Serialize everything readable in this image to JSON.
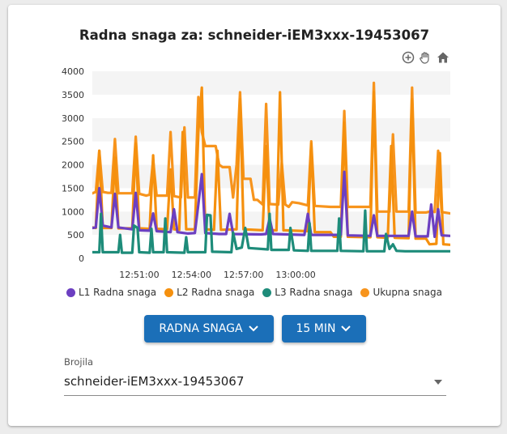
{
  "chart": {
    "title": "Radna snaga za: schneider-iEM3xxx-19453067",
    "toolbar": [
      {
        "name": "zoom-in-icon"
      },
      {
        "name": "pan-hand-icon"
      },
      {
        "name": "home-reset-icon"
      }
    ]
  },
  "chart_data": {
    "type": "line",
    "title": "Radna snaga za: schneider-iEM3xxx-19453067",
    "xlabel": "",
    "ylabel": "",
    "ylim": [
      0,
      4000
    ],
    "yticks": [
      0,
      500,
      1000,
      1500,
      2000,
      2500,
      3000,
      3500,
      4000
    ],
    "xticks": [
      "12:51:00",
      "12:54:00",
      "12:57:00",
      "13:00:00"
    ],
    "x_range_min": [
      -2.7,
      17.9
    ],
    "grid": "horizontal bands",
    "legend": "bottom",
    "series": [
      {
        "name": "L1 Radna snaga",
        "color": "#6c3fc1",
        "points": [
          [
            -2.7,
            650
          ],
          [
            -2.5,
            660
          ],
          [
            -2.3,
            1500
          ],
          [
            -2.1,
            700
          ],
          [
            -1.6,
            660
          ],
          [
            -1.4,
            1380
          ],
          [
            -1.2,
            660
          ],
          [
            -0.4,
            620
          ],
          [
            -0.2,
            1400
          ],
          [
            0,
            600
          ],
          [
            0.6,
            590
          ],
          [
            0.8,
            960
          ],
          [
            1,
            580
          ],
          [
            1.8,
            560
          ],
          [
            2,
            1050
          ],
          [
            2.2,
            560
          ],
          [
            2.8,
            530
          ],
          [
            3.2,
            540
          ],
          [
            3.4,
            1150
          ],
          [
            3.6,
            1800
          ],
          [
            3.8,
            540
          ],
          [
            4.6,
            520
          ],
          [
            5,
            520
          ],
          [
            5.2,
            950
          ],
          [
            5.4,
            520
          ],
          [
            7,
            510
          ],
          [
            7.3,
            520
          ],
          [
            7.5,
            850
          ],
          [
            7.7,
            520
          ],
          [
            9.5,
            500
          ],
          [
            9.7,
            950
          ],
          [
            9.9,
            500
          ],
          [
            11.6,
            500
          ],
          [
            11.8,
            1850
          ],
          [
            12,
            490
          ],
          [
            13.3,
            480
          ],
          [
            13.5,
            920
          ],
          [
            13.7,
            480
          ],
          [
            15.5,
            480
          ],
          [
            15.7,
            1000
          ],
          [
            15.9,
            470
          ],
          [
            16.6,
            470
          ],
          [
            16.8,
            1150
          ],
          [
            17,
            460
          ],
          [
            17.2,
            1050
          ],
          [
            17.4,
            490
          ],
          [
            17.9,
            480
          ]
        ]
      },
      {
        "name": "L2 Radna snaga",
        "color": "#f5900e",
        "points": [
          [
            -2.7,
            660
          ],
          [
            -2.5,
            650
          ],
          [
            -2.3,
            2300
          ],
          [
            -2.1,
            650
          ],
          [
            -1.6,
            650
          ],
          [
            -1.4,
            2150
          ],
          [
            -1.2,
            640
          ],
          [
            -0.4,
            640
          ],
          [
            -0.2,
            2450
          ],
          [
            0,
            640
          ],
          [
            0.6,
            630
          ],
          [
            0.8,
            2200
          ],
          [
            1,
            630
          ],
          [
            1.6,
            620
          ],
          [
            1.8,
            1900
          ],
          [
            2,
            620
          ],
          [
            2.3,
            610
          ],
          [
            2.5,
            2700
          ],
          [
            2.7,
            620
          ],
          [
            3.2,
            620
          ],
          [
            3.4,
            2700
          ],
          [
            3.6,
            3650
          ],
          [
            3.8,
            620
          ],
          [
            4.3,
            610
          ],
          [
            4.5,
            2300
          ],
          [
            4.7,
            610
          ],
          [
            5.6,
            620
          ],
          [
            5.8,
            3400
          ],
          [
            6,
            620
          ],
          [
            7.1,
            600
          ],
          [
            7.3,
            2400
          ],
          [
            7.5,
            600
          ],
          [
            7.9,
            600
          ],
          [
            8.1,
            3550
          ],
          [
            8.3,
            600
          ],
          [
            9.7,
            580
          ],
          [
            9.9,
            2450
          ],
          [
            10.1,
            560
          ],
          [
            11,
            560
          ],
          [
            11.2,
            460
          ],
          [
            11.6,
            460
          ],
          [
            11.8,
            2900
          ],
          [
            12,
            460
          ],
          [
            13.3,
            450
          ],
          [
            13.5,
            3550
          ],
          [
            13.7,
            450
          ],
          [
            14.3,
            440
          ],
          [
            14.5,
            2400
          ],
          [
            14.7,
            440
          ],
          [
            15.5,
            430
          ],
          [
            15.7,
            3400
          ],
          [
            15.9,
            420
          ],
          [
            16.5,
            420
          ],
          [
            16.7,
            300
          ],
          [
            17.1,
            310
          ],
          [
            17.3,
            2250
          ],
          [
            17.5,
            300
          ],
          [
            17.9,
            290
          ]
        ]
      },
      {
        "name": "L3 Radna snaga",
        "color": "#1e8c7a",
        "points": [
          [
            -2.7,
            130
          ],
          [
            -2.3,
            130
          ],
          [
            -2.2,
            950
          ],
          [
            -2.1,
            130
          ],
          [
            -1.2,
            130
          ],
          [
            -1.1,
            500
          ],
          [
            -1,
            120
          ],
          [
            -0.4,
            120
          ],
          [
            -0.3,
            700
          ],
          [
            -0.1,
            650
          ],
          [
            0,
            130
          ],
          [
            0.6,
            120
          ],
          [
            0.7,
            630
          ],
          [
            0.8,
            130
          ],
          [
            1.4,
            130
          ],
          [
            1.5,
            850
          ],
          [
            1.6,
            130
          ],
          [
            2.6,
            120
          ],
          [
            2.7,
            450
          ],
          [
            2.8,
            130
          ],
          [
            3.8,
            130
          ],
          [
            3.9,
            930
          ],
          [
            4.1,
            920
          ],
          [
            4.2,
            140
          ],
          [
            5.3,
            130
          ],
          [
            5.4,
            550
          ],
          [
            5.6,
            200
          ],
          [
            5.9,
            230
          ],
          [
            6.1,
            650
          ],
          [
            6.3,
            220
          ],
          [
            7.4,
            190
          ],
          [
            7.5,
            950
          ],
          [
            7.6,
            180
          ],
          [
            8.6,
            180
          ],
          [
            8.7,
            650
          ],
          [
            8.9,
            170
          ],
          [
            9.7,
            160
          ],
          [
            9.8,
            750
          ],
          [
            9.9,
            160
          ],
          [
            11.4,
            160
          ],
          [
            11.5,
            850
          ],
          [
            11.6,
            160
          ],
          [
            12.9,
            150
          ],
          [
            13,
            1020
          ],
          [
            13.1,
            150
          ],
          [
            14.1,
            150
          ],
          [
            14.2,
            520
          ],
          [
            14.4,
            200
          ],
          [
            14.6,
            300
          ],
          [
            14.8,
            160
          ],
          [
            15.3,
            150
          ],
          [
            15.9,
            150
          ],
          [
            16.9,
            150
          ],
          [
            17.9,
            150
          ]
        ]
      },
      {
        "name": "Ukupna snaga",
        "color": "#f7941d",
        "points": [
          [
            -2.7,
            1390
          ],
          [
            -2.5,
            1420
          ],
          [
            -2.3,
            2300
          ],
          [
            -2.1,
            1420
          ],
          [
            -1.8,
            1400
          ],
          [
            -1.6,
            1400
          ],
          [
            -1.4,
            2550
          ],
          [
            -1.2,
            1390
          ],
          [
            -0.4,
            1390
          ],
          [
            -0.2,
            2600
          ],
          [
            0,
            1380
          ],
          [
            0.4,
            1340
          ],
          [
            0.6,
            1360
          ],
          [
            0.8,
            2100
          ],
          [
            1,
            1340
          ],
          [
            1.6,
            1340
          ],
          [
            1.8,
            2700
          ],
          [
            2,
            1330
          ],
          [
            2.4,
            1300
          ],
          [
            2.6,
            2800
          ],
          [
            2.8,
            1300
          ],
          [
            3.2,
            1300
          ],
          [
            3.4,
            3450
          ],
          [
            3.6,
            2700
          ],
          [
            3.8,
            2400
          ],
          [
            4.4,
            2400
          ],
          [
            4.6,
            2000
          ],
          [
            4.8,
            1950
          ],
          [
            5.2,
            1950
          ],
          [
            5.4,
            1300
          ],
          [
            5.6,
            2000
          ],
          [
            5.8,
            3550
          ],
          [
            6,
            1700
          ],
          [
            6.4,
            1700
          ],
          [
            6.6,
            1250
          ],
          [
            6.8,
            1250
          ],
          [
            7.1,
            1150
          ],
          [
            7.3,
            3300
          ],
          [
            7.5,
            1160
          ],
          [
            8,
            1150
          ],
          [
            8.2,
            2050
          ],
          [
            8.4,
            1150
          ],
          [
            8.6,
            1100
          ],
          [
            8.8,
            1200
          ],
          [
            9.2,
            1180
          ],
          [
            9.7,
            1130
          ],
          [
            9.9,
            2500
          ],
          [
            10.1,
            1120
          ],
          [
            11,
            1100
          ],
          [
            11.2,
            1100
          ],
          [
            11.6,
            1100
          ],
          [
            11.8,
            3150
          ],
          [
            12,
            1100
          ],
          [
            13.1,
            1100
          ],
          [
            13.3,
            1100
          ],
          [
            13.5,
            3750
          ],
          [
            13.7,
            1000
          ],
          [
            14.4,
            1000
          ],
          [
            14.6,
            2650
          ],
          [
            14.8,
            1000
          ],
          [
            15.2,
            1000
          ],
          [
            15.5,
            1000
          ],
          [
            15.7,
            3650
          ],
          [
            15.9,
            980
          ],
          [
            16.5,
            980
          ],
          [
            16.7,
            1000
          ],
          [
            17,
            990
          ],
          [
            17.2,
            2300
          ],
          [
            17.4,
            990
          ],
          [
            17.9,
            960
          ]
        ]
      }
    ]
  },
  "buttons": {
    "metric": {
      "label": "RADNA SNAGA"
    },
    "interval": {
      "label": "15 MIN"
    }
  },
  "meter_select": {
    "label": "Brojila",
    "value": "schneider-iEM3xxx-19453067"
  },
  "colors": {
    "primary_button": "#1b6fb8",
    "l1": "#6c3fc1",
    "l2": "#f5900e",
    "l3": "#1e8c7a",
    "total": "#f7941d"
  }
}
